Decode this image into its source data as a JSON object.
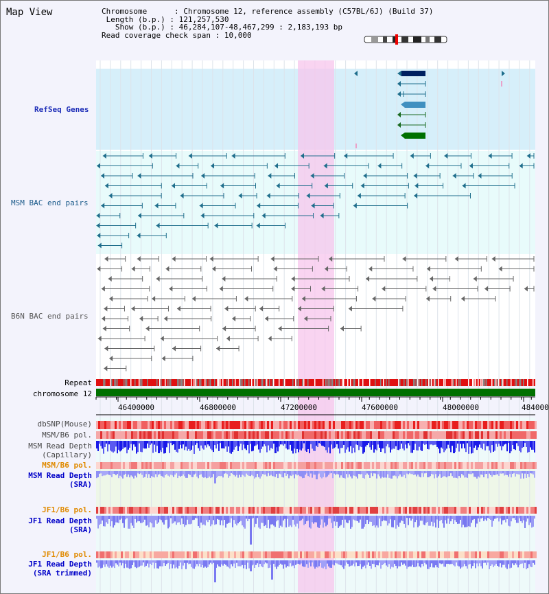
{
  "view": {
    "title": "Map View"
  },
  "info": {
    "chromosome_label": "Chromosome",
    "chromosome_value": "Chromosome 12, reference assembly (C57BL/6J) (Build 37)",
    "length_label": "Length (b.p.)",
    "length_value": "121,257,530",
    "show_label": "Show (b.p.)",
    "show_value": "46,284,107-48,467,299 : 2,183,193 bp",
    "span_label": "Read coverage check span",
    "span_value": "10,000"
  },
  "tracks": {
    "refseq": "RefSeq Genes",
    "msm_bac": "MSM BAC end pairs",
    "b6n_bac": "B6N BAC end pairs",
    "repeat": "Repeat",
    "chromosome": "chromosome 12",
    "dbsnp": "dbSNP(Mouse)",
    "msm_b6_pol": "MSM/B6 pol.",
    "msm_depth_cap_1": "MSM Read Depth",
    "msm_depth_cap_2": "(Capillary)",
    "msm_b6_pol_2": "MSM/B6 pol.",
    "msm_depth_sra_1": "MSM Read Depth",
    "msm_depth_sra_2": "(SRA)",
    "jf1_pol_1": "JF1/B6 pol.",
    "jf1_depth_sra_1": "JF1 Read Depth",
    "jf1_depth_sra_2": "(SRA)",
    "jf1_pol_2": "JF1/B6 pol.",
    "jf1_depth_trim_1": "JF1 Read Depth",
    "jf1_depth_trim_2": "(SRA trimmed)"
  },
  "axis": {
    "ticks": [
      "46400000",
      "46800000",
      "47200000",
      "47600000",
      "48000000",
      "484000"
    ]
  },
  "colors": {
    "accent_pink": "#f7d4ef",
    "refseq_bg": "#d6effa",
    "bac_bg": "#e8fbfb",
    "teal_feature": "#1f6e8c",
    "gray_feature": "#666666",
    "chrom_green": "#007000",
    "repeat_red": "#e01010",
    "depth_blue": "#1a1ae8"
  }
}
